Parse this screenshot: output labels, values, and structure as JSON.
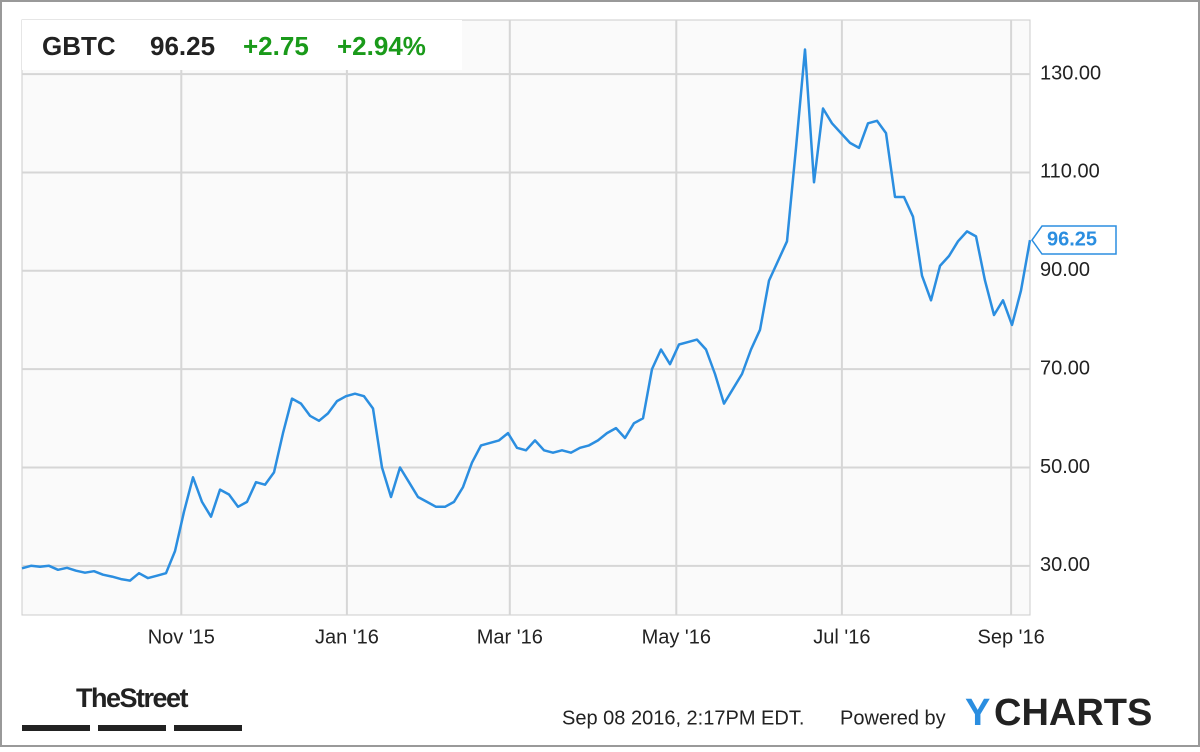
{
  "chart_data": {
    "type": "line",
    "ticker": "GBTC",
    "change": "+2.75",
    "change_pct": "+2.94%",
    "categories": [
      null,
      null,
      null,
      null,
      null,
      null,
      null,
      null,
      null,
      null,
      null,
      null,
      null,
      null,
      null,
      null,
      null,
      null,
      null,
      null,
      null,
      null,
      null,
      null,
      null,
      null,
      null,
      null,
      null,
      null,
      null,
      null,
      null,
      null,
      null,
      null,
      null,
      null,
      null,
      null,
      null,
      null,
      null,
      null,
      null,
      null,
      null,
      null,
      null,
      null,
      null,
      null,
      null,
      null,
      null,
      null,
      null,
      null,
      null,
      null,
      null,
      null,
      null,
      null,
      null,
      null,
      null,
      null,
      null,
      null,
      null,
      null,
      null,
      null,
      null,
      null,
      null,
      null,
      null,
      null,
      null,
      null,
      null,
      null,
      null,
      null,
      null,
      null,
      null,
      null,
      null,
      null,
      null,
      null,
      null,
      null,
      null,
      null,
      null,
      null,
      null,
      null,
      null,
      null,
      null,
      null,
      null,
      null,
      null,
      null,
      null,
      null,
      null
    ],
    "series": [
      {
        "name": "GBTC",
        "color": "#2b8ee0",
        "values": [
          29.5,
          30,
          29.8,
          30,
          29.2,
          29.6,
          29,
          28.6,
          28.9,
          28.2,
          27.8,
          27.3,
          27,
          28.5,
          27.5,
          28,
          28.5,
          33,
          41,
          48,
          43,
          40,
          45.5,
          44.5,
          42,
          43,
          47,
          46.5,
          49,
          57,
          64,
          63,
          60.5,
          59.5,
          61,
          63.5,
          64.5,
          65,
          64.5,
          62,
          50,
          44,
          50,
          47,
          44,
          43,
          42,
          42,
          43,
          46,
          51,
          54.5,
          55,
          55.5,
          57,
          54,
          53.5,
          55.5,
          53.5,
          53,
          53.5,
          53,
          54,
          54.5,
          55.5,
          57,
          58,
          56,
          59,
          60,
          70,
          74,
          71,
          75,
          75.5,
          76,
          74,
          69,
          63,
          66,
          69,
          74,
          78,
          88,
          92,
          96,
          115,
          135,
          108,
          123,
          120,
          118,
          116,
          115,
          120,
          120.5,
          118,
          105,
          105,
          101,
          89,
          84,
          91,
          93,
          96,
          98,
          97,
          88,
          81,
          84,
          79,
          86,
          96.25
        ]
      }
    ],
    "xlim": [
      0,
      112
    ],
    "xticks": [
      {
        "value": 17.7,
        "label": "Nov '15"
      },
      {
        "value": 36.1,
        "label": "Jan '16"
      },
      {
        "value": 54.2,
        "label": "Mar '16"
      },
      {
        "value": 72.7,
        "label": "May '16"
      },
      {
        "value": 91.1,
        "label": "Jul '16"
      },
      {
        "value": 109.9,
        "label": "Sep '16"
      }
    ],
    "ylim": [
      20,
      141
    ],
    "yticks": [
      {
        "value": 30,
        "label": "30.00"
      },
      {
        "value": 50,
        "label": "50.00"
      },
      {
        "value": 70,
        "label": "70.00"
      },
      {
        "value": 90,
        "label": "90.00"
      },
      {
        "value": 110,
        "label": "110.00"
      },
      {
        "value": 130,
        "label": "130.00"
      }
    ],
    "grid": true
  },
  "footer": {
    "source": "TheStreet",
    "timestamp": "Sep 08 2016, 2:17PM EDT.",
    "powered": "Powered by",
    "brand_first": "Y",
    "brand_rest": "CHARTS"
  }
}
